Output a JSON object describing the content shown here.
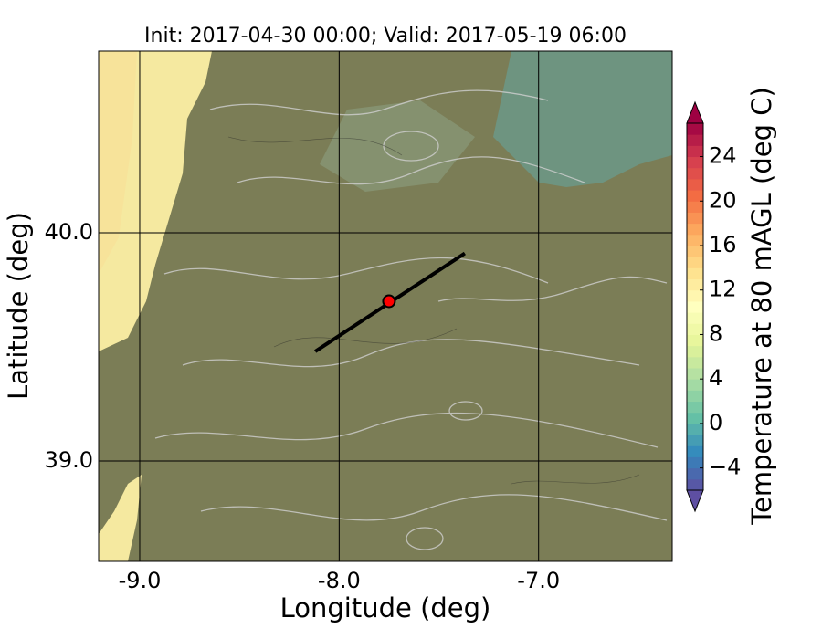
{
  "chart_data": {
    "type": "map",
    "title": "Init: 2017-04-30 00:00; Valid: 2017-05-19 06:00",
    "xlabel": "Longitude (deg)",
    "ylabel": "Latitude (deg)",
    "xlim": [
      -9.206,
      -6.33
    ],
    "ylim": [
      38.56,
      40.796
    ],
    "xticks": [
      {
        "value": -9,
        "label": "-9.0"
      },
      {
        "value": -8,
        "label": "-8.0"
      },
      {
        "value": -7,
        "label": "-7.0"
      }
    ],
    "yticks": [
      {
        "value": 39,
        "label": "39.0"
      },
      {
        "value": 40,
        "label": "40.0"
      }
    ],
    "grid": true,
    "transect": {
      "color": "#000000",
      "lon": [
        -8.12,
        -7.37
      ],
      "lat": [
        39.48,
        39.91
      ]
    },
    "point": {
      "color": "#ff0000",
      "lon": -7.75,
      "lat": 39.7
    },
    "colorbar": {
      "label": "Temperature at 80 mAGL (deg C)",
      "clim": [
        -6,
        27
      ],
      "ticks": [
        {
          "value": -4,
          "label": "−4"
        },
        0,
        4,
        8,
        12,
        16,
        20,
        24
      ],
      "colormap": [
        "#5e4fa2",
        "#3288bd",
        "#66c2a5",
        "#abdda4",
        "#e6f598",
        "#ffffbf",
        "#fee08b",
        "#fdae61",
        "#f46d43",
        "#d53e4f",
        "#9e0142"
      ]
    }
  }
}
